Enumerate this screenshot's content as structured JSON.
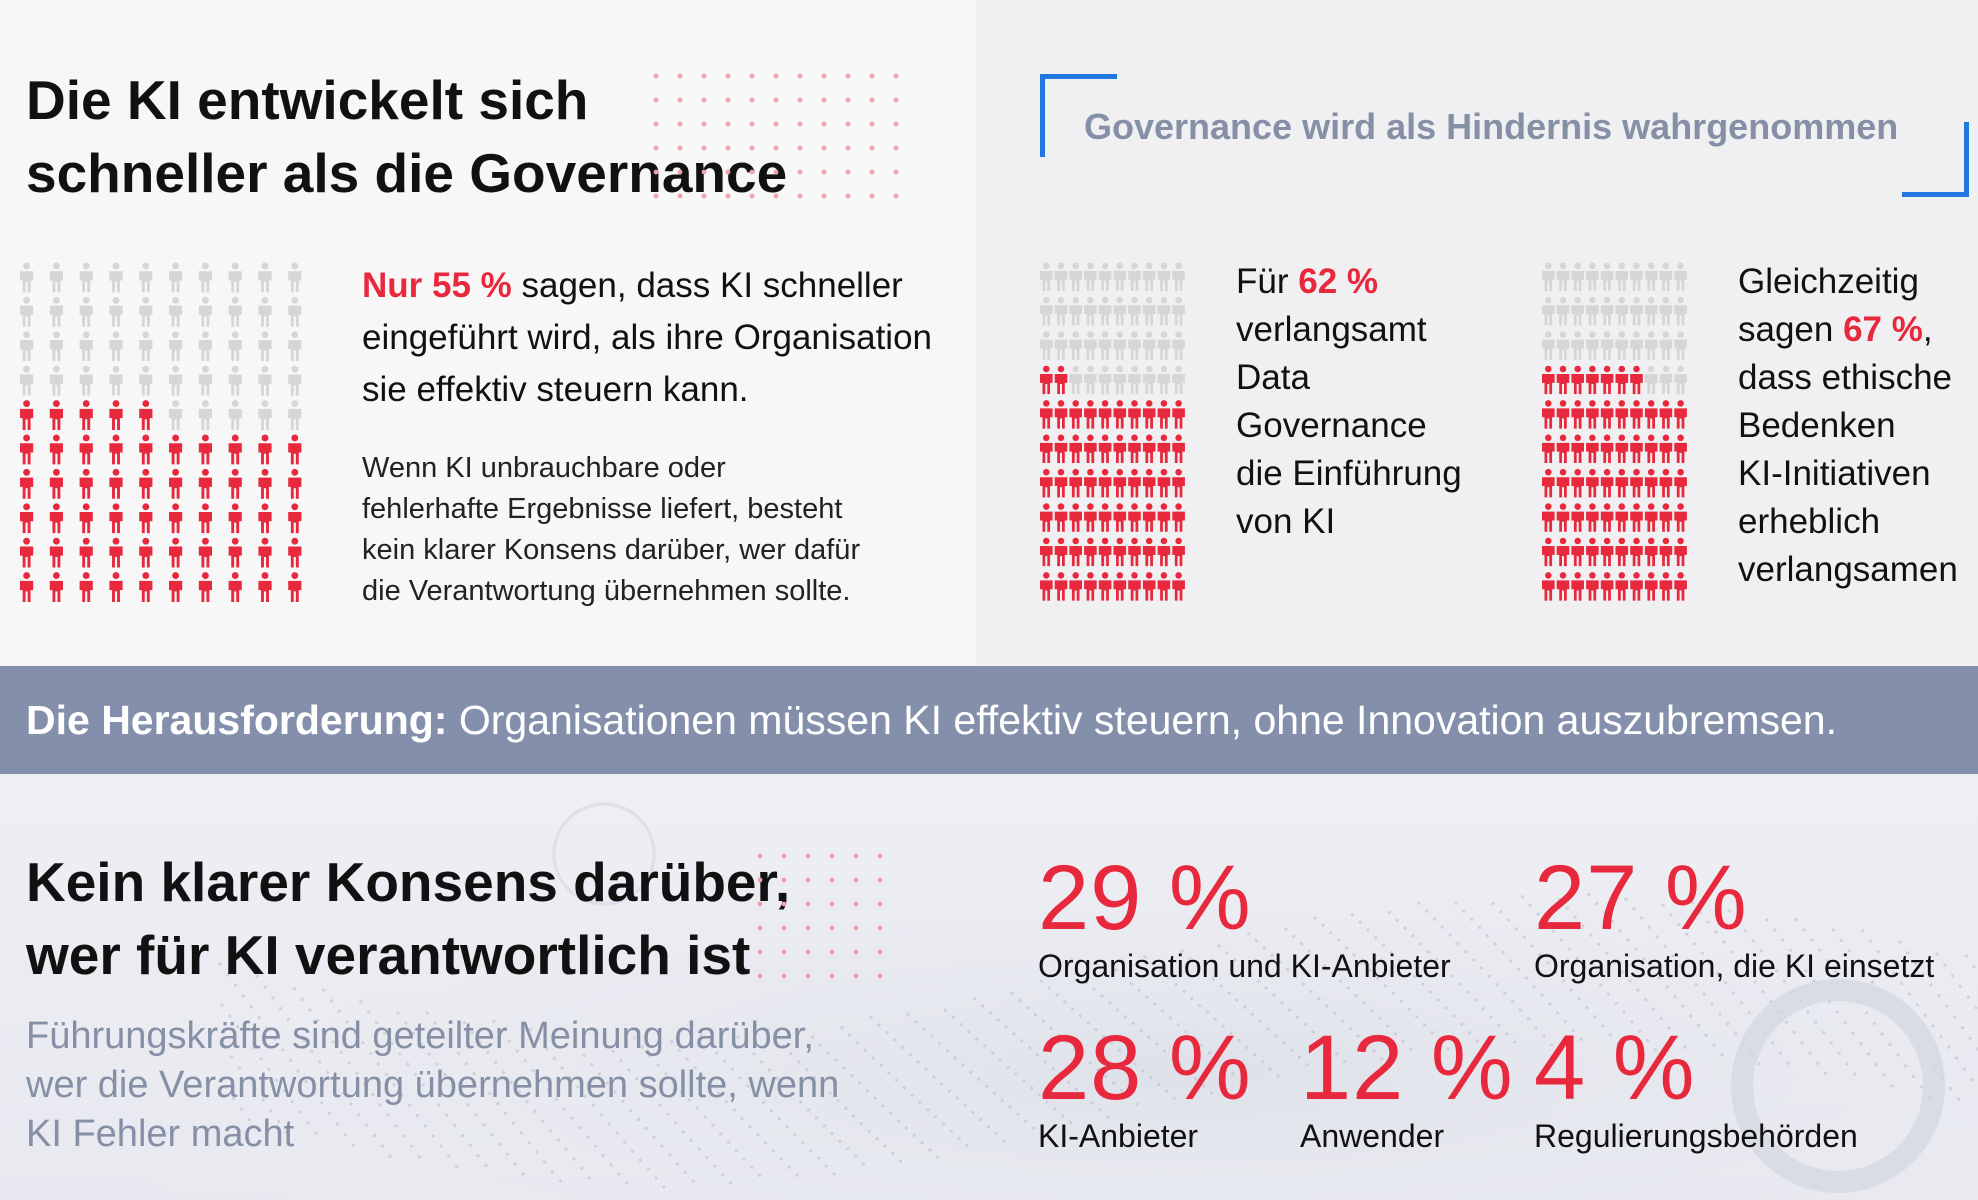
{
  "top_left": {
    "title_line1": "Die KI entwickelt sich",
    "title_line2": "schneller als die Governance",
    "lead_accent": "Nur 55 %",
    "lead_rest_1": " sagen, dass KI schneller",
    "lead_line2": "eingeführt wird, als ihre Organisation",
    "lead_line3": "sie effektiv steuern kann.",
    "body_line1": "Wenn KI unbrauchbare oder",
    "body_line2": "fehlerhafte Ergebnisse liefert, besteht",
    "body_line3": "kein klarer Konsens darüber, wer dafür",
    "body_line4": "die Verantwortung übernehmen sollte."
  },
  "top_right": {
    "title": "Governance wird als Hindernis wahrgenommen",
    "stat1": {
      "pre": "Für ",
      "accent": "62 %",
      "line2": "verlangsamt",
      "line3": "Data",
      "line4": "Governance",
      "line5": "die Einführung",
      "line6": "von KI"
    },
    "stat2": {
      "line1": "Gleichzeitig",
      "pre": "sagen ",
      "accent": "67 %",
      "post": ",",
      "line3": "dass ethische",
      "line4": "Bedenken",
      "line5": "KI-Initiativen",
      "line6": "erheblich",
      "line7": "verlangsamen"
    }
  },
  "band": {
    "bold": "Die Herausforderung:",
    "rest": " Organisationen müssen KI effektiv steuern, ohne Innovation auszubremsen."
  },
  "bottom": {
    "title_line1": "Kein klarer Konsens darüber,",
    "title_line2": "wer für KI verantwortlich ist",
    "subtitle_line1": "Führungskräfte sind geteilter Meinung darüber,",
    "subtitle_line2": "wer die Verantwortung übernehmen sollte, wenn",
    "subtitle_line3": "KI Fehler macht"
  },
  "colors": {
    "accent_red": "#e8283c",
    "inactive_grey": "#d6d6d8",
    "band": "#8490ab",
    "bracket_blue": "#1f78e0",
    "muted_text": "#8590a7"
  },
  "chart_data": [
    {
      "type": "pictogram",
      "total": 100,
      "highlighted": 55,
      "highlight_color": "#e8283c",
      "rest_color": "#d6d6d8"
    },
    {
      "type": "pictogram",
      "total": 100,
      "highlighted": 62,
      "highlight_color": "#e8283c",
      "rest_color": "#d6d6d8"
    },
    {
      "type": "pictogram",
      "total": 100,
      "highlighted": 67,
      "highlight_color": "#e8283c",
      "rest_color": "#d6d6d8"
    },
    {
      "type": "table",
      "items": [
        {
          "value": "29 %",
          "label": "Organisation und KI-Anbieter"
        },
        {
          "value": "27 %",
          "label": "Organisation, die KI einsetzt"
        },
        {
          "value": "28 %",
          "label": "KI-Anbieter"
        },
        {
          "value": "12 %",
          "label": "Anwender"
        },
        {
          "value": "4 %",
          "label": "Regulierungsbehörden"
        }
      ]
    }
  ]
}
